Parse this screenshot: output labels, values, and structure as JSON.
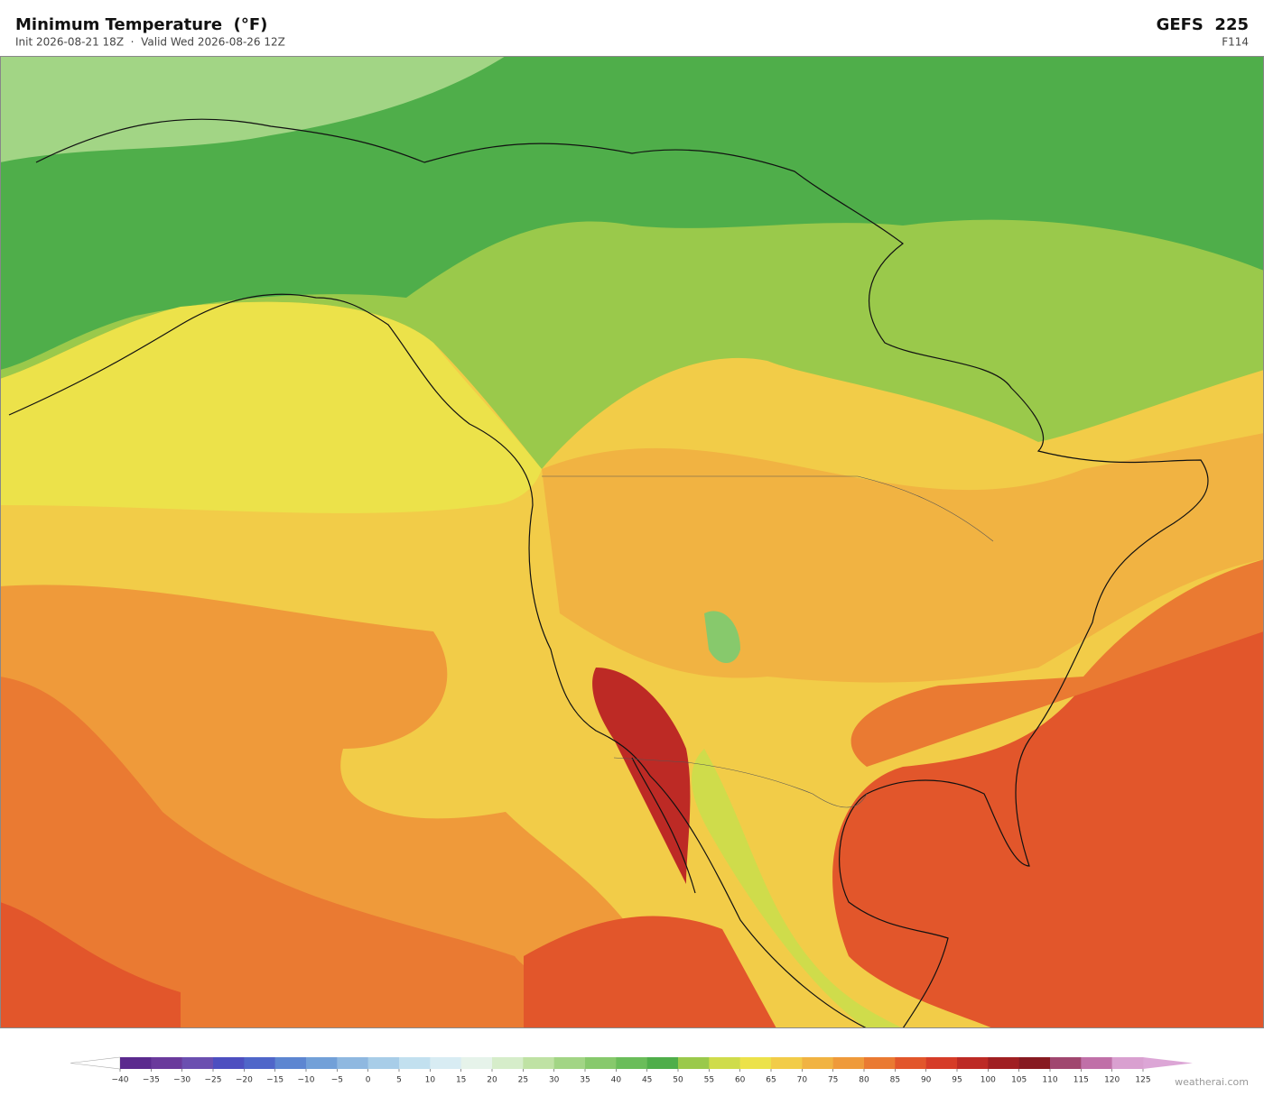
{
  "header": {
    "title": "Minimum Temperature  (°F)",
    "subtitle": "Init 2026-08-21 18Z  ·  Valid Wed 2026-08-26 12Z",
    "model": "GEFS  225",
    "forecast_hour": "F114"
  },
  "colorbar": {
    "ticks": [
      {
        "value": -40,
        "label": "−40"
      },
      {
        "value": -35,
        "label": "−35"
      },
      {
        "value": -30,
        "label": "−30"
      },
      {
        "value": -25,
        "label": "−25"
      },
      {
        "value": -20,
        "label": "−20"
      },
      {
        "value": -15,
        "label": "−15"
      },
      {
        "value": -10,
        "label": "−10"
      },
      {
        "value": -5,
        "label": "−5"
      },
      0,
      5,
      10,
      15,
      20,
      25,
      30,
      35,
      40,
      45,
      50,
      55,
      60,
      65,
      70,
      75,
      80,
      85,
      90,
      95,
      100,
      105,
      110,
      115,
      120,
      125
    ],
    "colors": [
      "#5b2a8e",
      "#6a3a9c",
      "#6b4fb0",
      "#4d4fc0",
      "#4f66c9",
      "#5d86d1",
      "#72a0d8",
      "#8fb8e0",
      "#a8cde8",
      "#c2e0ef",
      "#d8ecf3",
      "#e6f3ea",
      "#d6edca",
      "#bfe2a4",
      "#a2d585",
      "#87c96c",
      "#6abd5a",
      "#4fae4a",
      "#9ac94b",
      "#cfdc4b",
      "#ece24a",
      "#f2cc48",
      "#f1b342",
      "#ef9a3a",
      "#ea7a32",
      "#e2562b",
      "#d63c28",
      "#bd2a25",
      "#a01f22",
      "#871a21",
      "#a0476f",
      "#c070a8",
      "#d9a0d0"
    ],
    "under_color": "#ffffff",
    "over_color": "#dca6d6"
  },
  "credit": "weatherai.com"
}
